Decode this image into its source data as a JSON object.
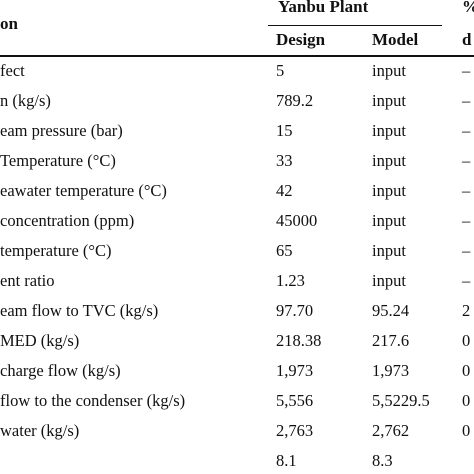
{
  "header": {
    "col1": "on",
    "group": "Yanbu Plant",
    "design": "Design",
    "model": "Model",
    "last_top": "%",
    "last_bottom": "d"
  },
  "rows": [
    {
      "param": "fect",
      "design": "5",
      "model": "input",
      "last": "–"
    },
    {
      "param": "n (kg/s)",
      "design": "789.2",
      "model": "input",
      "last": "–"
    },
    {
      "param": "eam pressure (bar)",
      "design": "15",
      "model": "input",
      "last": "–"
    },
    {
      "param": " Temperature (°C)",
      "design": "33",
      "model": "input",
      "last": "–"
    },
    {
      "param": "eawater temperature (°C)",
      "design": "42",
      "model": "input",
      "last": "–"
    },
    {
      "param": "concentration (ppm)",
      "design": "45000",
      "model": "input",
      "last": "–"
    },
    {
      "param": " temperature (°C)",
      "design": "65",
      "model": "input",
      "last": "–"
    },
    {
      "param": "ent ratio",
      "design": "1.23",
      "model": "input",
      "last": "–"
    },
    {
      "param": "eam flow to TVC (kg/s)",
      "design": "97.70",
      "model": "95.24",
      "last": "2"
    },
    {
      "param": "MED (kg/s)",
      "design": "218.38",
      "model": "217.6",
      "last": "0"
    },
    {
      "param": "charge flow (kg/s)",
      "design": "1,973",
      "model": "1,973",
      "last": "0"
    },
    {
      "param": " flow to the condenser (kg/s)",
      "design": "5,556",
      "model": "5,5229.5",
      "last": "0"
    },
    {
      "param": "water (kg/s)",
      "design": "2,763",
      "model": "2,762",
      "last": "0"
    },
    {
      "param": "",
      "design": "8.1",
      "model": "8.3",
      "last": ""
    }
  ]
}
